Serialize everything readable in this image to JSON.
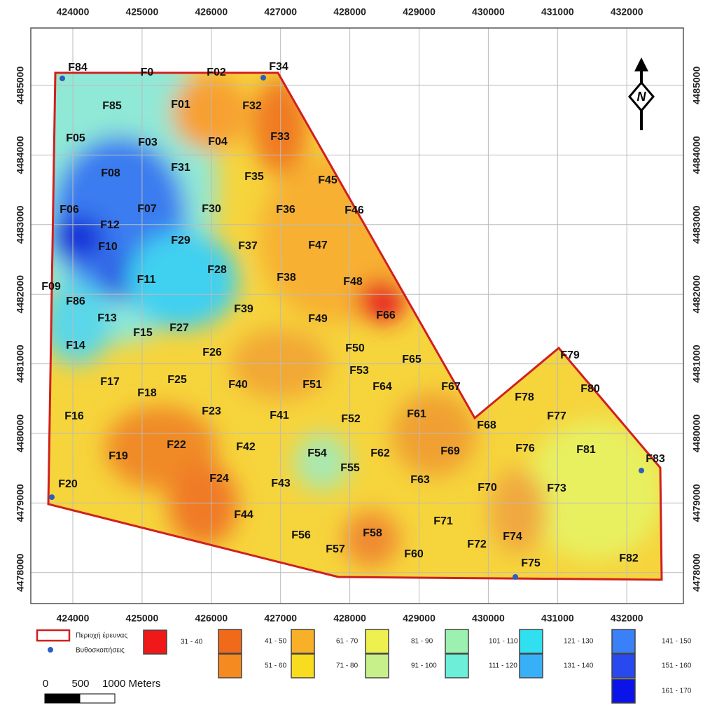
{
  "map": {
    "x_ticks": [
      424000,
      425000,
      426000,
      427000,
      428000,
      429000,
      430000,
      431000,
      432000
    ],
    "y_ticks": [
      4485000,
      4484000,
      4483000,
      4482000,
      4481000,
      4480000,
      4479000,
      4478000
    ],
    "north": "N",
    "wells": [
      "F84",
      "F0",
      "F02",
      "F34",
      "F85",
      "F01",
      "F32",
      "F05",
      "F03",
      "F04",
      "F33",
      "F08",
      "F31",
      "F35",
      "F45",
      "F06",
      "F07",
      "F30",
      "F36",
      "F46",
      "F12",
      "F10",
      "F29",
      "F37",
      "F47",
      "F28",
      "F11",
      "F38",
      "F48",
      "F09",
      "F86",
      "F39",
      "F66",
      "F13",
      "F49",
      "F15",
      "F27",
      "F14",
      "F50",
      "F26",
      "F65",
      "F79",
      "F53",
      "F17",
      "F25",
      "F40",
      "F51",
      "F64",
      "F67",
      "F80",
      "F18",
      "F78",
      "F16",
      "F23",
      "F41",
      "F52",
      "F61",
      "F77",
      "F68",
      "F22",
      "F42",
      "F54",
      "F62",
      "F69",
      "F76",
      "F81",
      "F83",
      "F19",
      "F55",
      "F24",
      "F43",
      "F63",
      "F70",
      "F73",
      "F20",
      "F44",
      "F71",
      "F56",
      "F58",
      "F74",
      "F72",
      "F57",
      "F60",
      "F82",
      "F75"
    ],
    "legend": {
      "area": "Περιοχή έρευνας",
      "soundings": "Βυθοσκοπήσεις",
      "classes": [
        {
          "label": "31 - 40",
          "color": "#f01818"
        },
        {
          "label": "41 - 50",
          "color": "#f06a1a"
        },
        {
          "label": "51 - 60",
          "color": "#f58a20"
        },
        {
          "label": "61 - 70",
          "color": "#f8b028"
        },
        {
          "label": "71 - 80",
          "color": "#f8dc20"
        },
        {
          "label": "81 - 90",
          "color": "#eef050"
        },
        {
          "label": "91 - 100",
          "color": "#c8f08a"
        },
        {
          "label": "101 - 110",
          "color": "#9cf0b0"
        },
        {
          "label": "111 - 120",
          "color": "#6ceed8"
        },
        {
          "label": "121 - 130",
          "color": "#30e0f0"
        },
        {
          "label": "131 - 140",
          "color": "#38b0f8"
        },
        {
          "label": "141 - 150",
          "color": "#3a80f8"
        },
        {
          "label": "151 - 160",
          "color": "#2848f0"
        },
        {
          "label": "161 - 170",
          "color": "#0a14e8"
        }
      ]
    },
    "scale": {
      "labels": [
        "0",
        "500",
        "1000 Meters"
      ]
    }
  }
}
